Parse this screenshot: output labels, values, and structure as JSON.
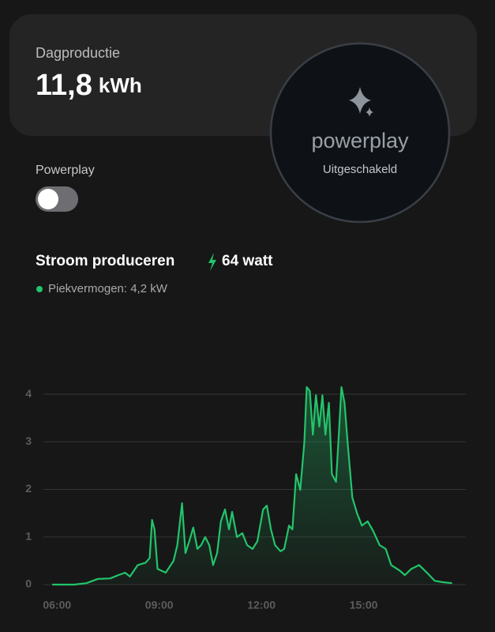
{
  "card": {
    "title": "Dagproductie",
    "value": "11,8",
    "unit": "kWh"
  },
  "powerplay": {
    "label": "Powerplay",
    "brand": "powerplay",
    "status": "Uitgeschakeld"
  },
  "production": {
    "title": "Stroom produceren",
    "current": "64 watt",
    "peak": "Piekvermogen: 4,2 kW"
  },
  "chart_data": {
    "type": "area",
    "color": "#23c46b",
    "grid": true,
    "x": [
      5.86,
      6.5,
      6.86,
      7.2,
      7.56,
      7.8,
      8.0,
      8.14,
      8.37,
      8.6,
      8.72,
      8.79,
      8.86,
      8.95,
      9.19,
      9.42,
      9.53,
      9.67,
      9.77,
      9.88,
      10.0,
      10.12,
      10.23,
      10.35,
      10.47,
      10.58,
      10.7,
      10.81,
      10.93,
      11.05,
      11.14,
      11.28,
      11.44,
      11.58,
      11.74,
      11.88,
      12.05,
      12.16,
      12.28,
      12.4,
      12.56,
      12.67,
      12.81,
      12.91,
      13.02,
      13.14,
      13.26,
      13.33,
      13.42,
      13.51,
      13.6,
      13.7,
      13.79,
      13.88,
      13.98,
      14.07,
      14.19,
      14.26,
      14.35,
      14.44,
      14.53,
      14.67,
      14.81,
      14.95,
      15.12,
      15.28,
      15.47,
      15.65,
      15.81,
      16.05,
      16.21,
      16.4,
      16.63,
      16.86,
      17.09,
      17.33,
      17.6
    ],
    "values": [
      0,
      0,
      0.03,
      0.12,
      0.13,
      0.2,
      0.25,
      0.17,
      0.41,
      0.46,
      0.56,
      1.36,
      1.16,
      0.33,
      0.25,
      0.5,
      0.83,
      1.71,
      0.66,
      0.91,
      1.2,
      0.75,
      0.83,
      1.0,
      0.83,
      0.41,
      0.66,
      1.33,
      1.58,
      1.16,
      1.53,
      1.0,
      1.08,
      0.83,
      0.75,
      0.91,
      1.58,
      1.66,
      1.16,
      0.83,
      0.7,
      0.75,
      1.24,
      1.16,
      2.32,
      1.99,
      2.99,
      4.15,
      4.07,
      3.15,
      3.98,
      3.32,
      3.98,
      3.15,
      3.82,
      2.32,
      2.16,
      2.99,
      4.15,
      3.82,
      2.99,
      1.83,
      1.49,
      1.24,
      1.33,
      1.13,
      0.83,
      0.75,
      0.41,
      0.3,
      0.2,
      0.33,
      0.41,
      0.25,
      0.08,
      0.05,
      0.03
    ],
    "xlim": [
      5.6,
      18.0
    ],
    "xticks": [
      {
        "value": 6,
        "label": "06:00"
      },
      {
        "value": 9,
        "label": "09:00"
      },
      {
        "value": 12,
        "label": "12:00"
      },
      {
        "value": 15,
        "label": "15:00"
      }
    ],
    "ylim": [
      0,
      4.2
    ],
    "yticks": [
      0,
      1,
      2,
      3,
      4
    ]
  }
}
